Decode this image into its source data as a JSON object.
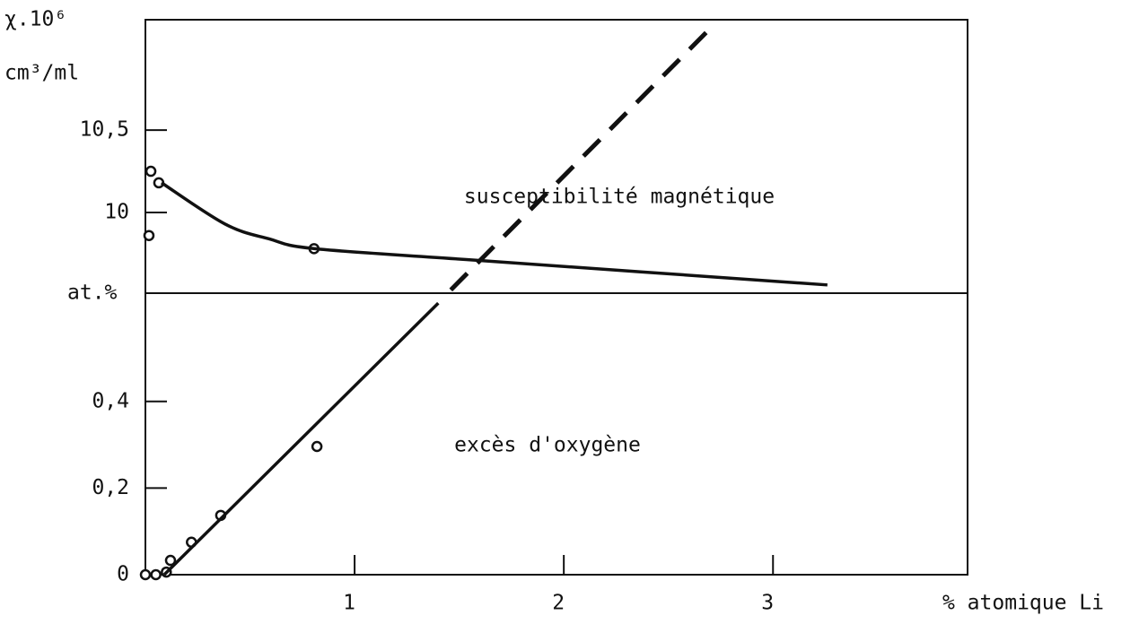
{
  "chart_data": [
    {
      "type": "line",
      "ylabel": [
        "χ.10⁶",
        "cm³/ml"
      ],
      "annotation": "susceptibilité magnétique",
      "xlim": [
        0,
        3.93
      ],
      "ylim": [
        9.51,
        11.17
      ],
      "yticks": [
        {
          "value": 10.5,
          "label": "10,5"
        },
        10
      ],
      "series": [
        {
          "style": "markers",
          "color": "#111",
          "x": [
            0.026,
            0.064,
            0.017,
            0.806
          ],
          "values": [
            10.25,
            10.18,
            9.86,
            9.78
          ]
        },
        {
          "style": "line",
          "color": "#111",
          "x": [
            0.077,
            0.38,
            0.59,
            0.81,
            1.58,
            3.26
          ],
          "values": [
            10.18,
            9.93,
            9.84,
            9.78,
            9.71,
            9.56
          ]
        },
        {
          "style": "dashed",
          "color": "#111",
          "x": [
            1.46,
            2.71
          ],
          "values": [
            9.53,
            11.13
          ]
        }
      ]
    },
    {
      "type": "line",
      "ylabel": [
        "at.%"
      ],
      "annotation": "excès d'oxygène",
      "xlabel": "% atomique Li",
      "xlim": [
        0,
        3.93
      ],
      "ylim": [
        0,
        0.65
      ],
      "xticks": [
        1,
        2,
        3
      ],
      "yticks": [
        {
          "value": 0.4,
          "label": "0,4"
        },
        {
          "value": 0.2,
          "label": "0,2"
        },
        0
      ],
      "series": [
        {
          "style": "markers",
          "color": "#111",
          "x": [
            0,
            0.05,
            0.1,
            0.12,
            0.22,
            0.36,
            0.82
          ],
          "values": [
            0,
            0,
            0.006,
            0.033,
            0.075,
            0.137,
            0.296
          ]
        },
        {
          "style": "line",
          "color": "#111",
          "x": [
            0.09,
            1.4
          ],
          "values": [
            0,
            0.627
          ]
        }
      ]
    }
  ]
}
